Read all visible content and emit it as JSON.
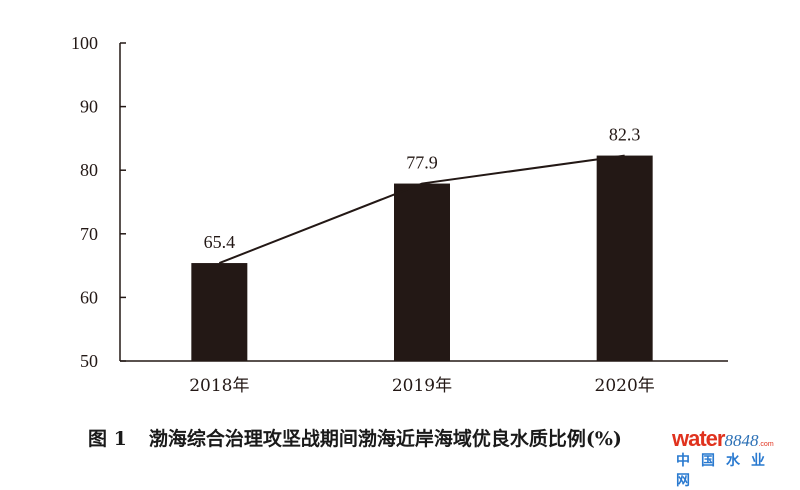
{
  "chart_data": {
    "type": "bar",
    "categories": [
      "2018年",
      "2019年",
      "2020年"
    ],
    "values": [
      65.4,
      77.9,
      82.3
    ],
    "data_labels": [
      "65.4",
      "77.9",
      "82.3"
    ],
    "overlay_line": true,
    "title": "",
    "xlabel": "",
    "ylabel": "",
    "ylim": [
      50,
      100
    ],
    "yticks": [
      50,
      60,
      70,
      80,
      90,
      100
    ],
    "grid": false,
    "bar_color": "#231815"
  },
  "caption": {
    "figure_number": "图 1",
    "text": "渤海综合治理攻坚战期间渤海近岸海域优良水质比例(%)"
  },
  "watermark": {
    "brand": "water",
    "number": "8848",
    "domain_suffix": ".com",
    "chinese_name": "中国水业网"
  }
}
